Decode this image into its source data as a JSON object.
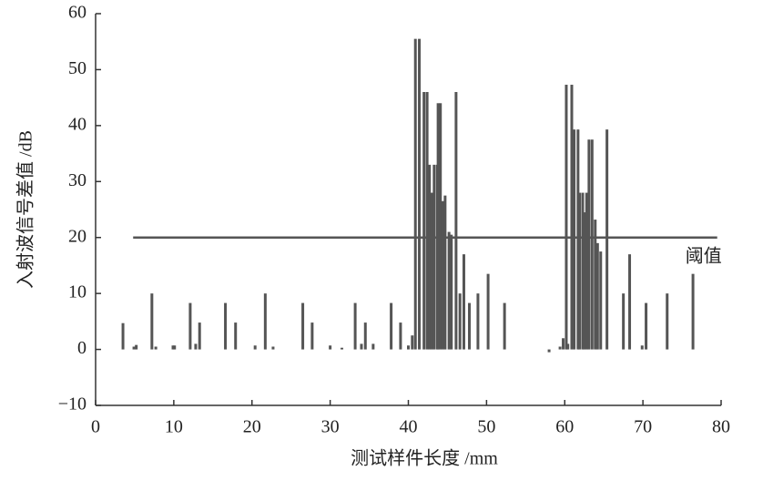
{
  "chart_data": {
    "type": "bar",
    "x_label": "测试样件长度 /mm",
    "y_label": "入射波信号差值 /dB",
    "color": "#555555",
    "x": [
      3.5,
      4.9,
      5.2,
      7.2,
      7.7,
      9.9,
      10.1,
      12.1,
      12.8,
      13.3,
      16.6,
      17.9,
      20.4,
      21.7,
      22.7,
      26.5,
      27.7,
      30,
      31.5,
      33.2,
      34,
      34.5,
      35.5,
      37.8,
      39,
      40,
      40.5,
      40.9,
      41.4,
      42,
      42.4,
      42.7,
      43,
      43.3,
      43.7,
      43.8,
      44.1,
      44.4,
      44.7,
      45.2,
      45.5,
      46.1,
      46.6,
      47.1,
      47.8,
      48.9,
      50.2,
      52.3,
      58,
      59.4,
      59.8,
      60.2,
      60.4,
      60.9,
      61.2,
      61.7,
      61.9,
      62.3,
      62.5,
      62.8,
      63.1,
      63.5,
      63.9,
      64.2,
      64.6,
      65.4,
      67.5,
      68.3,
      69.9,
      70.4,
      73.1,
      76.4
    ],
    "values": [
      4.7,
      0.5,
      0.8,
      10,
      0.5,
      0.7,
      0.7,
      8.3,
      1,
      4.8,
      8.3,
      4.8,
      0.7,
      10,
      0.5,
      8.3,
      4.8,
      0.7,
      0.3,
      8.3,
      1,
      4.8,
      1,
      8.3,
      4.8,
      0.7,
      2.5,
      55.5,
      55.5,
      46,
      46,
      33,
      28,
      33,
      33,
      44,
      44,
      26.5,
      27.5,
      21,
      20.5,
      46,
      10,
      17,
      8.3,
      10,
      13.5,
      8.3,
      -0.5,
      0.5,
      2,
      47.3,
      1,
      47.3,
      39.3,
      39.3,
      28,
      28,
      24.5,
      28,
      37.5,
      37.5,
      23.2,
      19,
      17.5,
      39.3,
      10,
      17,
      0.7,
      8.3,
      10,
      13.5
    ],
    "threshold": {
      "value": 20,
      "label": "阈值",
      "x": [
        4.8,
        79.5
      ]
    },
    "xlim": [
      0,
      80
    ],
    "xticks": [
      0,
      10,
      20,
      30,
      40,
      50,
      60,
      70,
      80
    ],
    "ylim": [
      -10,
      60
    ],
    "yticks": [
      {
        "value": -10,
        "label": "−10"
      },
      0,
      10,
      20,
      30,
      40,
      50,
      60
    ]
  }
}
